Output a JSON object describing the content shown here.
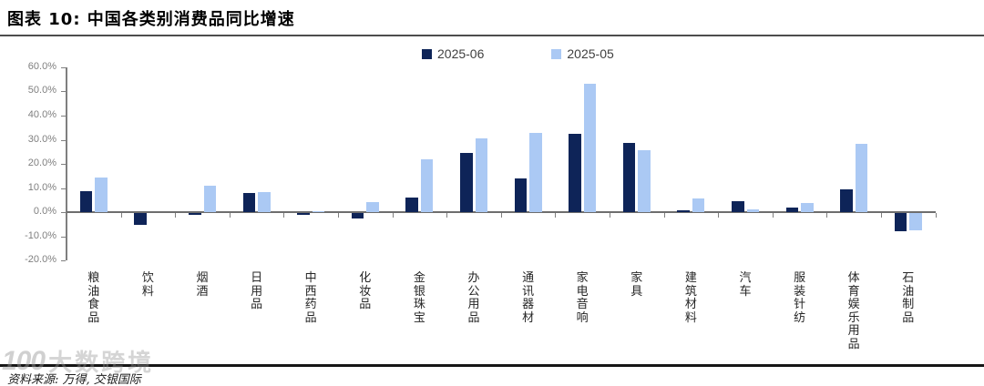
{
  "page": {
    "title": "图表 10: 中国各类别消费品同比增速"
  },
  "legend": {
    "items": [
      {
        "label": "2025-06",
        "color": "#0e2458"
      },
      {
        "label": "2025-05",
        "color": "#abc9f4"
      }
    ]
  },
  "footer": {
    "source_text": "资料来源: 万得, 交银国际"
  },
  "watermark": {
    "logo_text": "100",
    "text": "大数跨境"
  },
  "colors": {
    "series_dark": "#0e2458",
    "series_light": "#abc9f4",
    "axis_gray": "#7f7f7f",
    "title_rule": "#4d4d4d",
    "bottom_rule": "#161616"
  },
  "chart_data": {
    "type": "bar",
    "title": "中国各类别消费品同比增速",
    "categories": [
      "粮油食品",
      "饮料",
      "烟酒",
      "日用品",
      "中西药品",
      "化妆品",
      "金银珠宝",
      "办公用品",
      "通讯器材",
      "家电音响",
      "家具",
      "建筑材料",
      "汽车",
      "服装针纺",
      "体育娱乐用品",
      "石油制品"
    ],
    "series": [
      {
        "name": "2025-06",
        "color": "#0e2458",
        "values": [
          8.6,
          -4.6,
          -0.7,
          8.0,
          -0.7,
          -2.3,
          6.1,
          24.4,
          13.9,
          32.4,
          28.7,
          1.0,
          4.6,
          1.9,
          9.4,
          -7.5
        ]
      },
      {
        "name": "2025-05",
        "color": "#abc9f4",
        "values": [
          14.6,
          0.0,
          11.2,
          8.4,
          0.2,
          4.1,
          21.8,
          30.5,
          33.0,
          53.0,
          25.6,
          5.8,
          1.1,
          4.0,
          28.3,
          -7.0
        ]
      }
    ],
    "xlabel": "",
    "ylabel": "",
    "ylim": [
      -20,
      60
    ],
    "ytick_step": 10,
    "ytick_format": "percent_1dp",
    "grid": false,
    "legend_position": "top-center"
  }
}
